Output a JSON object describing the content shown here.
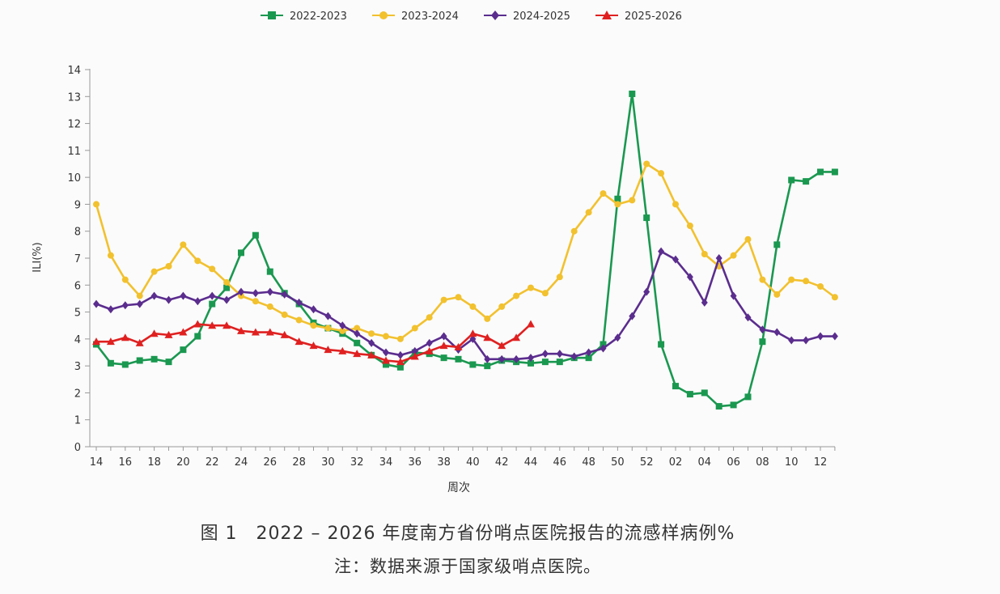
{
  "chart_data": {
    "type": "line",
    "ylabel": "ILI(%)",
    "xlabel": "周次",
    "ylim": [
      0,
      14
    ],
    "yticks": [
      0,
      1,
      2,
      3,
      4,
      5,
      6,
      7,
      8,
      9,
      10,
      11,
      12,
      13,
      14
    ],
    "x_weeks": [
      "14",
      "15",
      "16",
      "17",
      "18",
      "19",
      "20",
      "21",
      "22",
      "23",
      "24",
      "25",
      "26",
      "27",
      "28",
      "29",
      "30",
      "31",
      "32",
      "33",
      "34",
      "35",
      "36",
      "37",
      "38",
      "39",
      "40",
      "41",
      "42",
      "43",
      "44",
      "45",
      "46",
      "47",
      "48",
      "49",
      "50",
      "51",
      "52",
      "01",
      "02",
      "03",
      "04",
      "05",
      "06",
      "07",
      "08",
      "09",
      "10",
      "11",
      "12",
      "13"
    ],
    "x_tick_labels": [
      "14",
      "16",
      "18",
      "20",
      "22",
      "24",
      "26",
      "28",
      "30",
      "32",
      "34",
      "36",
      "38",
      "40",
      "42",
      "44",
      "46",
      "48",
      "50",
      "52",
      "02",
      "04",
      "06",
      "08",
      "10",
      "12"
    ],
    "legend_position": "top",
    "series": [
      {
        "name": "2022-2023",
        "color": "#1a9850",
        "marker": "square",
        "values": [
          3.8,
          3.1,
          3.05,
          3.2,
          3.25,
          3.15,
          3.6,
          4.1,
          5.3,
          5.9,
          7.2,
          7.85,
          6.5,
          5.7,
          5.3,
          4.6,
          4.4,
          4.2,
          3.85,
          3.4,
          3.05,
          2.95,
          3.5,
          3.45,
          3.3,
          3.25,
          3.05,
          3.0,
          3.2,
          3.15,
          3.1,
          3.15,
          3.15,
          3.3,
          3.3,
          3.8,
          9.2,
          13.1,
          8.5,
          3.8,
          2.25,
          1.95,
          2.0,
          1.5,
          1.55,
          1.85,
          3.9,
          7.5,
          9.9,
          9.85,
          10.2,
          10.2
        ]
      },
      {
        "name": "2023-2024",
        "color": "#f2c12e",
        "marker": "circle",
        "values": [
          9.0,
          7.1,
          6.2,
          5.6,
          6.5,
          6.7,
          7.5,
          6.9,
          6.6,
          6.1,
          5.6,
          5.4,
          5.2,
          4.9,
          4.7,
          4.5,
          4.4,
          4.3,
          4.4,
          4.2,
          4.1,
          4.0,
          4.4,
          4.8,
          5.45,
          5.55,
          5.2,
          4.75,
          5.2,
          5.6,
          5.9,
          5.7,
          6.3,
          8.0,
          8.7,
          9.4,
          9.0,
          9.15,
          10.5,
          10.15,
          9.0,
          8.2,
          7.15,
          6.7,
          7.1,
          7.7,
          6.2,
          5.65,
          6.2,
          6.15,
          5.95,
          5.55
        ]
      },
      {
        "name": "2024-2025",
        "color": "#5b2d8e",
        "marker": "diamond",
        "values": [
          5.3,
          5.1,
          5.25,
          5.3,
          5.6,
          5.45,
          5.6,
          5.4,
          5.6,
          5.45,
          5.75,
          5.7,
          5.75,
          5.65,
          5.35,
          5.1,
          4.85,
          4.5,
          4.2,
          3.85,
          3.5,
          3.4,
          3.55,
          3.85,
          4.1,
          3.6,
          4.0,
          3.25,
          3.25,
          3.25,
          3.3,
          3.45,
          3.45,
          3.35,
          3.5,
          3.65,
          4.05,
          4.85,
          5.75,
          7.25,
          6.95,
          6.3,
          5.35,
          7.0,
          5.6,
          4.8,
          4.35,
          4.25,
          3.95,
          3.95,
          4.1,
          4.1
        ]
      },
      {
        "name": "2025-2026",
        "color": "#e02020",
        "marker": "triangle",
        "values": [
          3.9,
          3.9,
          4.05,
          3.85,
          4.2,
          4.15,
          4.25,
          4.55,
          4.5,
          4.5,
          4.3,
          4.25,
          4.25,
          4.15,
          3.9,
          3.75,
          3.6,
          3.55,
          3.45,
          3.4,
          3.2,
          3.15,
          3.35,
          3.55,
          3.75,
          3.7,
          4.2,
          4.05,
          3.75,
          4.05,
          4.55
        ]
      }
    ]
  },
  "captions": {
    "main": "图 1　2022 – 2026 年度南方省份哨点医院报告的流感样病例%",
    "note": "注：数据来源于国家级哨点医院。"
  }
}
